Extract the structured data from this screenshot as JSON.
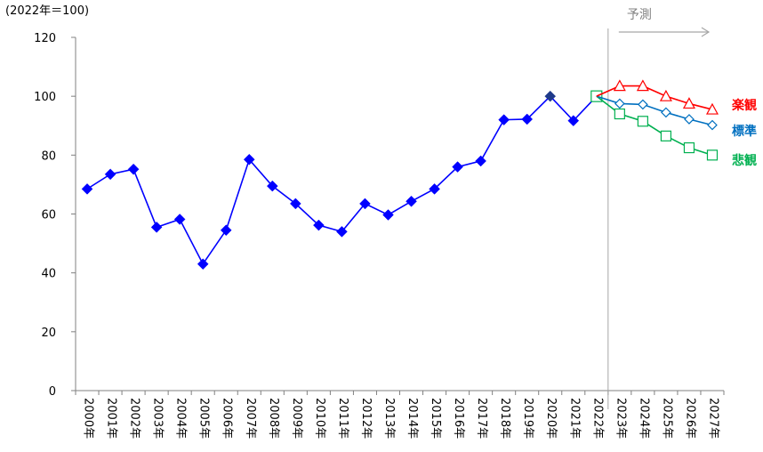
{
  "chart_data": {
    "type": "line",
    "unit_label": "(2022年＝100)",
    "forecast_label": "予測",
    "ylim": [
      0,
      120
    ],
    "yticks": [
      0,
      20,
      40,
      60,
      80,
      100,
      120
    ],
    "grid": false,
    "categories": [
      "2000年",
      "2001年",
      "2002年",
      "2003年",
      "2004年",
      "2005年",
      "2006年",
      "2007年",
      "2008年",
      "2009年",
      "2010年",
      "2011年",
      "2012年",
      "2013年",
      "2014年",
      "2015年",
      "2016年",
      "2017年",
      "2018年",
      "2019年",
      "2020年",
      "2021年",
      "2022年",
      "2023年",
      "2024年",
      "2025年",
      "2026年",
      "2027年"
    ],
    "series": [
      {
        "kind": "actual",
        "color": "#0000ff",
        "marker": "filled-diamond",
        "x": [
          "2000年",
          "2001年",
          "2002年",
          "2003年",
          "2004年",
          "2005年",
          "2006年",
          "2007年",
          "2008年",
          "2009年",
          "2010年",
          "2011年",
          "2012年",
          "2013年",
          "2014年",
          "2015年",
          "2016年",
          "2017年",
          "2018年",
          "2019年",
          "2020年",
          "2021年",
          "2022年"
        ],
        "values": [
          68.5,
          73.5,
          75.2,
          55.5,
          58.2,
          43.0,
          54.5,
          78.5,
          69.5,
          63.5,
          56.2,
          54.0,
          63.5,
          59.7,
          64.3,
          68.5,
          76.0,
          78.0,
          92.0,
          92.2,
          100.0,
          91.7,
          100.0
        ]
      },
      {
        "name": "楽観",
        "color": "#ff0000",
        "marker": "open-triangle",
        "x": [
          "2022年",
          "2023年",
          "2024年",
          "2025年",
          "2026年",
          "2027年"
        ],
        "values": [
          100.0,
          103.5,
          103.5,
          100.0,
          97.5,
          95.5
        ]
      },
      {
        "name": "標準",
        "color": "#0070c0",
        "marker": "open-diamond",
        "x": [
          "2022年",
          "2023年",
          "2024年",
          "2025年",
          "2026年",
          "2027年"
        ],
        "values": [
          100.0,
          97.5,
          97.2,
          94.5,
          92.2,
          90.2
        ]
      },
      {
        "name": "悲観",
        "color": "#00b050",
        "marker": "open-square",
        "x": [
          "2022年",
          "2023年",
          "2024年",
          "2025年",
          "2026年",
          "2027年"
        ],
        "values": [
          100.0,
          94.0,
          91.5,
          86.5,
          82.5,
          80.0
        ]
      }
    ]
  }
}
